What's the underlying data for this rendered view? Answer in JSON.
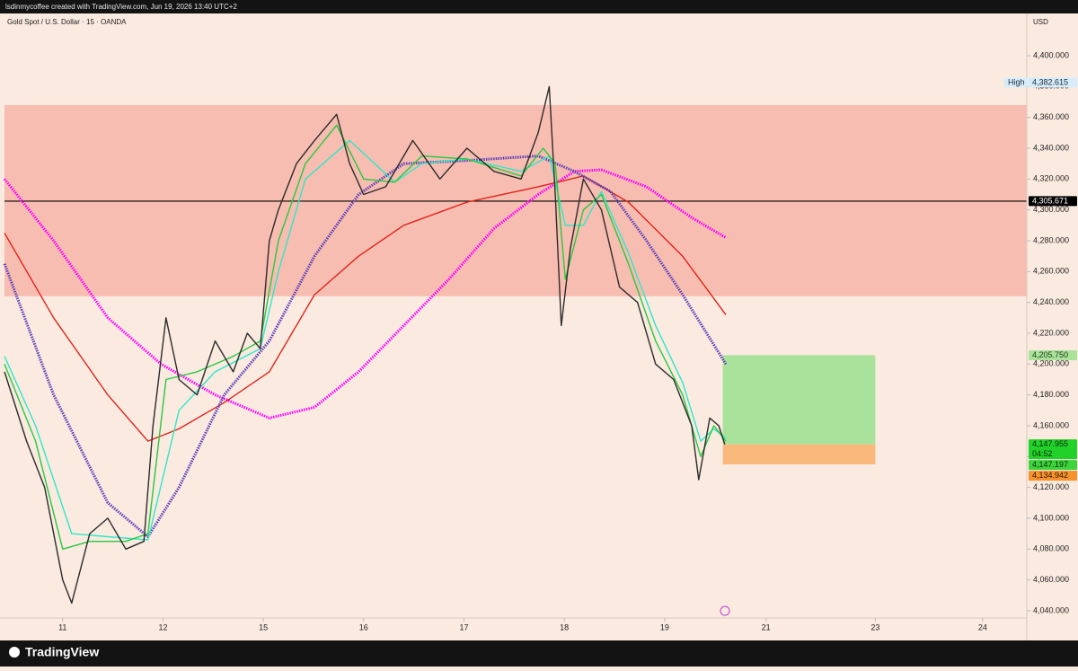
{
  "header": {
    "credit": "lsdinmycoffee created with TradingView.com, Jun 19, 2026 13:40 UTC+2"
  },
  "footer": {
    "brand": "TradingView"
  },
  "chart_data": {
    "type": "line",
    "title": "Gold Spot / U.S. Dollar · 15 · OANDA",
    "y_unit": "USD",
    "xlim": [
      -0.58,
      9.61
    ],
    "ylim": [
      4035.3,
      4427.4
    ],
    "xticks": [
      {
        "value": 0,
        "label": "11"
      },
      {
        "value": 1,
        "label": "12"
      },
      {
        "value": 2,
        "label": "15"
      },
      {
        "value": 3,
        "label": "16"
      },
      {
        "value": 4,
        "label": "17"
      },
      {
        "value": 5,
        "label": "18"
      },
      {
        "value": 6,
        "label": "19"
      },
      {
        "value": 7.01,
        "label": "21"
      },
      {
        "value": 8.1,
        "label": "23"
      },
      {
        "value": 9.17,
        "label": "24"
      }
    ],
    "yticks": [
      {
        "value": 4040,
        "label": "4,040.000"
      },
      {
        "value": 4060,
        "label": "4,060.000"
      },
      {
        "value": 4080,
        "label": "4,080.000"
      },
      {
        "value": 4100,
        "label": "4,100.000"
      },
      {
        "value": 4120,
        "label": "4,120.000"
      },
      {
        "value": 4140,
        "label": "4,140.000"
      },
      {
        "value": 4160,
        "label": "4,160.000"
      },
      {
        "value": 4180,
        "label": "4,180.000"
      },
      {
        "value": 4200,
        "label": "4,200.000"
      },
      {
        "value": 4220,
        "label": "4,220.000"
      },
      {
        "value": 4240,
        "label": "4,240.000"
      },
      {
        "value": 4260,
        "label": "4,260.000"
      },
      {
        "value": 4280,
        "label": "4,280.000"
      },
      {
        "value": 4300,
        "label": "4,300.000"
      },
      {
        "value": 4320,
        "label": "4,320.000"
      },
      {
        "value": 4340,
        "label": "4,340.000"
      },
      {
        "value": 4360,
        "label": "4,360.000"
      },
      {
        "value": 4380,
        "label": "4,380.000"
      },
      {
        "value": 4400,
        "label": "4,400.000"
      }
    ],
    "zones": [
      {
        "top": 4368,
        "bottom": 4244,
        "color": "#f8bdb1"
      },
      {
        "top": 4205.75,
        "bottom": 4147.955,
        "x": [
          6.58,
          8.1
        ],
        "color": "#a9e29b"
      },
      {
        "top": 4147.955,
        "bottom": 4134.942,
        "x": [
          6.58,
          8.1
        ],
        "color": "#f9b97c"
      }
    ],
    "hline": {
      "value": 4305.671,
      "color": "#000000"
    },
    "series": [
      {
        "color": "#ff00ff",
        "dash": true,
        "x": [
          -0.58,
          -0.09,
          0.45,
          0.98,
          1.52,
          2.06,
          2.51,
          2.95,
          3.4,
          3.85,
          4.3,
          4.74,
          5.1,
          5.37,
          5.82,
          6.27,
          6.61
        ],
        "values": [
          4320,
          4280,
          4230,
          4200,
          4180,
          4165,
          4172,
          4195,
          4225,
          4255,
          4288,
          4310,
          4325,
          4326,
          4315,
          4295,
          4282
        ]
      },
      {
        "color": "#e0241b",
        "dash": false,
        "x": [
          -0.58,
          -0.09,
          0.45,
          0.85,
          1.16,
          1.61,
          2.06,
          2.51,
          2.95,
          3.4,
          4.03,
          4.74,
          5.19,
          5.64,
          6.18,
          6.61
        ],
        "values": [
          4285,
          4230,
          4180,
          4150,
          4158,
          4175,
          4195,
          4245,
          4270,
          4290,
          4305,
          4315,
          4322,
          4305,
          4270,
          4232
        ]
      },
      {
        "color": "#5b3fb8",
        "dash": true,
        "x": [
          -0.58,
          -0.09,
          0.45,
          0.85,
          1.16,
          1.61,
          2.06,
          2.51,
          2.95,
          3.4,
          4.03,
          4.74,
          5.1,
          5.46,
          5.82,
          6.18,
          6.61
        ],
        "values": [
          4265,
          4180,
          4110,
          4088,
          4120,
          4180,
          4215,
          4270,
          4310,
          4330,
          4332,
          4335,
          4325,
          4312,
          4280,
          4245,
          4200
        ]
      },
      {
        "color": "#2ee8c8",
        "dash": false,
        "x": [
          -0.58,
          -0.27,
          0.09,
          0.45,
          0.85,
          1.16,
          1.52,
          1.97,
          2.15,
          2.42,
          2.86,
          3.31,
          3.58,
          4.03,
          4.57,
          4.85,
          5.01,
          5.19,
          5.37,
          5.64,
          5.91,
          6.18,
          6.36,
          6.49,
          6.61
        ],
        "values": [
          4205,
          4160,
          4090,
          4088,
          4086,
          4170,
          4195,
          4210,
          4260,
          4320,
          4345,
          4318,
          4330,
          4333,
          4325,
          4335,
          4290,
          4290,
          4312,
          4272,
          4225,
          4188,
          4150,
          4158,
          4152
        ]
      },
      {
        "color": "#28c840",
        "dash": false,
        "x": [
          -0.58,
          -0.27,
          0,
          0.27,
          0.63,
          0.85,
          1.03,
          1.34,
          1.7,
          1.97,
          2.15,
          2.42,
          2.73,
          3,
          3.31,
          3.58,
          4.03,
          4.57,
          4.79,
          4.91,
          5.01,
          5.19,
          5.37,
          5.64,
          5.91,
          6.18,
          6.36,
          6.49,
          6.61
        ],
        "values": [
          4200,
          4150,
          4080,
          4085,
          4085,
          4090,
          4190,
          4195,
          4205,
          4215,
          4280,
          4330,
          4355,
          4320,
          4318,
          4335,
          4333,
          4322,
          4340,
          4330,
          4255,
          4300,
          4310,
          4265,
          4215,
          4180,
          4140,
          4160,
          4150
        ]
      },
      {
        "color": "#2b2b2b",
        "dash": false,
        "x": [
          -0.58,
          -0.36,
          -0.18,
          0,
          0.09,
          0.27,
          0.45,
          0.63,
          0.81,
          0.9,
          1.03,
          1.16,
          1.34,
          1.52,
          1.7,
          1.84,
          1.97,
          2.06,
          2.15,
          2.33,
          2.51,
          2.73,
          2.86,
          3,
          3.22,
          3.49,
          3.76,
          4.03,
          4.3,
          4.57,
          4.74,
          4.85,
          4.91,
          4.97,
          5.06,
          5.19,
          5.37,
          5.55,
          5.73,
          5.91,
          6.09,
          6.27,
          6.34,
          6.45,
          6.54,
          6.6
        ],
        "values": [
          4195,
          4150,
          4120,
          4060,
          4045,
          4090,
          4100,
          4080,
          4085,
          4160,
          4230,
          4190,
          4180,
          4215,
          4195,
          4220,
          4210,
          4280,
          4300,
          4330,
          4345,
          4362,
          4330,
          4310,
          4315,
          4345,
          4320,
          4340,
          4325,
          4320,
          4350,
          4380,
          4310,
          4225,
          4275,
          4320,
          4300,
          4250,
          4240,
          4200,
          4190,
          4160,
          4125,
          4165,
          4160,
          4148
        ]
      }
    ],
    "price_labels": [
      {
        "value": 4382.615,
        "label": "4,382.615",
        "tag": "High",
        "bg": "#d7ecfb",
        "fg": "#1c2a3a"
      },
      {
        "value": 4305.671,
        "label": "4,305.671",
        "bg": "#000000",
        "fg": "#ffffff"
      },
      {
        "value": 4205.75,
        "label": "4,205.750",
        "bg": "#a9e29b",
        "fg": "#1a3a12"
      },
      {
        "value": 4147.955,
        "label": "4,147.955",
        "countdown": "04:52",
        "bg": "#22d12a",
        "fg": "#0b2a07"
      },
      {
        "value": 4147.197,
        "label": "4,147.197",
        "bg": "#3dd33c",
        "fg": "#0b2a07"
      },
      {
        "value": 4134.942,
        "label": "4,134.942",
        "bg": "#f7922c",
        "fg": "#2a1500"
      }
    ]
  }
}
